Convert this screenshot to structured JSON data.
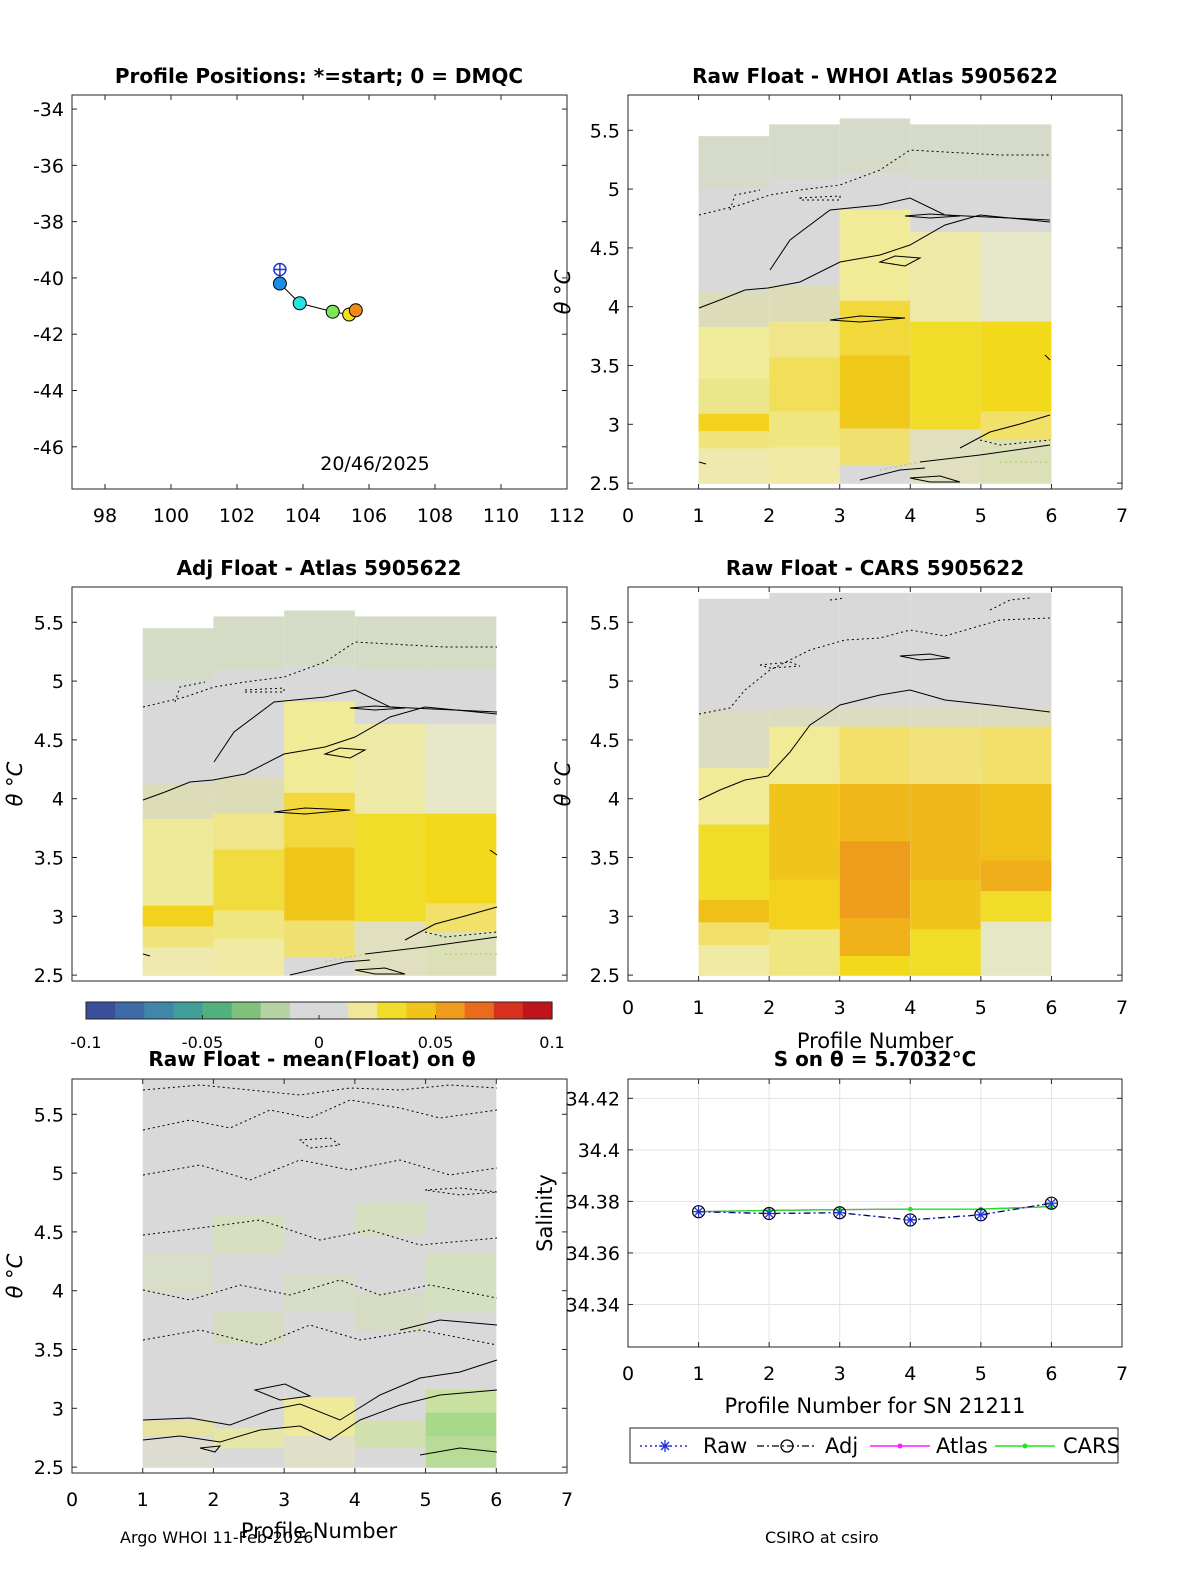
{
  "chart_data": [
    {
      "type": "scatter",
      "title": "Profile Positions: *=start; 0 = DMQC",
      "xlim": [
        97,
        112
      ],
      "ylim": [
        -47.5,
        -33.5
      ],
      "xticks": [
        "98",
        "100",
        "102",
        "104",
        "106",
        "108",
        "110",
        "112"
      ],
      "yticks": [
        "-34",
        "-36",
        "-38",
        "-40",
        "-42",
        "-44",
        "-46"
      ],
      "annotation": "20/46/2025",
      "track": {
        "lon": [
          103.3,
          103.3,
          103.9,
          104.9,
          105.4,
          105.6
        ],
        "lat": [
          -39.7,
          -40.2,
          -40.9,
          -41.2,
          -41.3,
          -41.15
        ],
        "colors": [
          "#1f3bd1",
          "#1b8fe6",
          "#29e3e3",
          "#7de55a",
          "#f2e01a",
          "#f08a1a"
        ]
      }
    },
    {
      "type": "heatmap",
      "title": "Raw Float - WHOI Atlas  5905622",
      "xlim": [
        0,
        7
      ],
      "ylim": [
        2.45,
        5.8
      ],
      "xticks": [
        "0",
        "1",
        "2",
        "3",
        "4",
        "5",
        "6",
        "7"
      ],
      "yticks": [
        "2.5",
        "3",
        "3.5",
        "4",
        "4.5",
        "5",
        "5.5"
      ],
      "ylabel": "θ °C"
    },
    {
      "type": "heatmap",
      "title": "Adj Float - Atlas  5905622",
      "xlim": [
        0,
        7
      ],
      "ylim": [
        2.45,
        5.8
      ],
      "yticks": [
        "2.5",
        "3",
        "3.5",
        "4",
        "4.5",
        "5",
        "5.5"
      ],
      "ylabel": "θ °C",
      "colorbar": {
        "range": [
          -0.1,
          0.1
        ],
        "ticks": [
          "-0.1",
          "-0.05",
          "0",
          "0.05",
          "0.1"
        ]
      }
    },
    {
      "type": "heatmap",
      "title": "Raw Float - CARS  5905622",
      "xlim": [
        0,
        7
      ],
      "ylim": [
        2.45,
        5.8
      ],
      "xticks": [
        "0",
        "1",
        "2",
        "3",
        "4",
        "5",
        "6",
        "7"
      ],
      "yticks": [
        "2.5",
        "3",
        "3.5",
        "4",
        "4.5",
        "5",
        "5.5"
      ],
      "xlabel": "Profile Number",
      "ylabel": "θ °C"
    },
    {
      "type": "heatmap",
      "title": "Raw Float - mean(Float) on θ",
      "xlim": [
        0,
        7
      ],
      "ylim": [
        2.45,
        5.8
      ],
      "xticks": [
        "0",
        "1",
        "2",
        "3",
        "4",
        "5",
        "6",
        "7"
      ],
      "yticks": [
        "2.5",
        "3",
        "3.5",
        "4",
        "4.5",
        "5",
        "5.5"
      ],
      "xlabel": "Profile Number",
      "ylabel": "θ °C"
    },
    {
      "type": "line",
      "title": "S on θ = 5.7032°C",
      "xlabel": "Profile Number for SN 21211",
      "ylabel": "Salinity",
      "xlim": [
        0,
        7
      ],
      "ylim": [
        34.3235,
        34.4275
      ],
      "xticks": [
        "0",
        "1",
        "2",
        "3",
        "4",
        "5",
        "6",
        "7"
      ],
      "yticks": [
        "34.34",
        "34.36",
        "34.38",
        "34.4",
        "34.42"
      ],
      "grid": true,
      "legend_position": "bottom",
      "x": [
        1,
        2,
        3,
        4,
        5,
        6
      ],
      "series": [
        {
          "name": "Raw",
          "values": [
            34.376,
            34.3753,
            34.3756,
            34.3728,
            34.3748,
            34.3793
          ]
        },
        {
          "name": "Adj",
          "values": [
            34.376,
            34.3753,
            34.3756,
            34.3728,
            34.3748,
            34.3793
          ]
        },
        {
          "name": "Atlas",
          "values": [
            34.376,
            34.3765,
            34.3768,
            34.377,
            34.377,
            34.378
          ]
        },
        {
          "name": "CARS",
          "values": [
            34.376,
            34.3765,
            34.3768,
            34.377,
            34.377,
            34.378
          ]
        }
      ]
    }
  ],
  "footer": {
    "left": "Argo WHOI 11-Feb-2026",
    "right": "CSIRO at csiro"
  }
}
